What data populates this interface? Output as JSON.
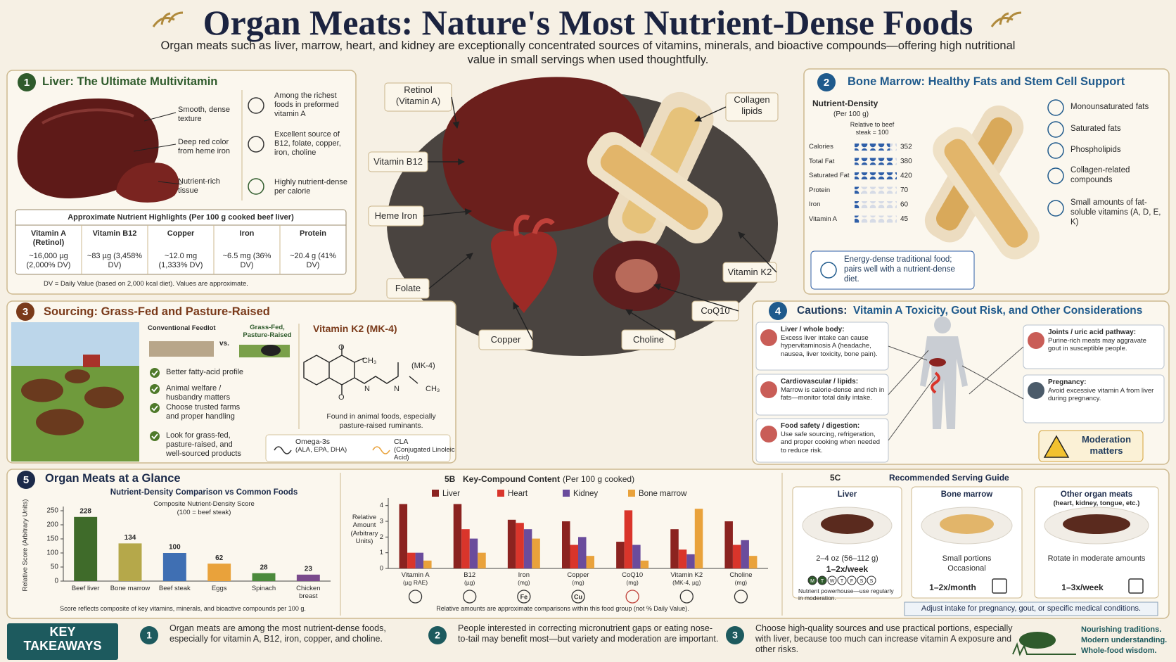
{
  "header": {
    "title": "Organ Meats: Nature's Most Nutrient-Dense Foods",
    "subtitle": "Organ meats such as liver, marrow, heart, and kidney are exceptionally concentrated sources of vitamins, minerals, and bioactive compounds—offering high nutritional value in small servings when used thoughtfully."
  },
  "liver": {
    "number": "1",
    "title": "Liver: The Ultimate Multivitamin",
    "features": [
      "Smooth, dense texture",
      "Deep red color from heme iron",
      "Nutrient-rich tissue"
    ],
    "highlights": [
      "Among the richest foods in preformed vitamin A",
      "Excellent source of B12, folate, copper, iron, choline",
      "Highly nutrient-dense per calorie"
    ],
    "table": {
      "title": "Approximate Nutrient Highlights (Per 100 g cooked beef liver)",
      "columns": [
        "Vitamin A (Retinol)",
        "Vitamin B12",
        "Copper",
        "Iron",
        "Protein"
      ],
      "rows": [
        [
          "~16,000 µg (2,000% DV)",
          "~83 µg (3,458% DV)",
          "~12.0 mg (1,333% DV)",
          "~6.5 mg (36% DV)",
          "~20.4 g (41% DV)"
        ]
      ]
    },
    "note": "DV = Daily Value (based on 2,000 kcal diet). Values are approximate."
  },
  "center_labels": [
    "Retinol (Vitamin A)",
    "Vitamin B12",
    "Heme Iron",
    "Folate",
    "Copper",
    "Choline",
    "CoQ10",
    "Vitamin K2",
    "Collagen lipids"
  ],
  "marrow": {
    "number": "2",
    "title": "Bone Marrow: Healthy Fats and Stem Cell Support",
    "density": {
      "title": "Nutrient-Density",
      "subtitle": "(Per 100 g)",
      "note": "Relative to beef steak = 100",
      "categories": [
        "Calories",
        "Total Fat",
        "Saturated Fat",
        "Protein",
        "Iron",
        "Vitamin A"
      ],
      "values": [
        352,
        380,
        420,
        70,
        60,
        45
      ],
      "color": "#2f5fa8"
    },
    "features": [
      "Monounsaturated fats",
      "Saturated fats",
      "Phospholipids",
      "Collagen-related compounds",
      "Small amounts of fat-soluble vitamins (A, D, E, K)"
    ],
    "note": "Energy-dense traditional food; pairs well with a nutrient-dense diet."
  },
  "sourcing": {
    "number": "3",
    "title": "Sourcing: Grass-Fed and Pasture-Raised",
    "conventional": "Conventional Feedlot",
    "vs": "vs.",
    "grass_fed": "Grass-Fed, Pasture-Raised",
    "benefits": [
      "Better fatty-acid profile",
      "Animal welfare / husbandry matters",
      "Choose trusted farms and proper handling",
      "Look for grass-fed, pasture-raised, and well-sourced products"
    ],
    "k2": {
      "title": "Vitamin K2 (MK-4)",
      "atoms": [
        "O",
        "O",
        "CH₃",
        "(MK-4)",
        "N",
        "N",
        "CH₃"
      ],
      "note": "Found in animal foods, especially pasture-raised ruminants."
    },
    "extras": [
      {
        "name": "Omega-3s",
        "detail": "(ALA, EPA, DHA)"
      },
      {
        "name": "CLA",
        "detail": "(Conjugated Linoleic Acid)"
      }
    ]
  },
  "cautions": {
    "number": "4",
    "title_lead": "Cautions:",
    "title": "Vitamin A Toxicity, Gout Risk, and Other Considerations",
    "items": [
      {
        "title": "Liver / whole body:",
        "text": "Excess liver intake can cause hypervitaminosis A (headache, nausea, liver toxicity, bone pain)."
      },
      {
        "title": "Cardiovascular / lipids:",
        "text": "Marrow is calorie-dense and rich in fats—monitor total daily intake."
      },
      {
        "title": "Food safety / digestion:",
        "text": "Use safe sourcing, refrigeration, and proper cooking when needed to reduce risk."
      },
      {
        "title": "Joints / uric acid pathway:",
        "text": "Purine-rich meats may aggravate gout in susceptible people."
      },
      {
        "title": "Pregnancy:",
        "text": "Avoid excessive vitamin A from liver during pregnancy."
      }
    ],
    "badge": "Moderation matters"
  },
  "glance": {
    "number": "5",
    "title": "Organ Meats at a Glance"
  },
  "chart_data": [
    {
      "type": "bar",
      "title": "Nutrient-Density Comparison vs Common Foods",
      "subtitle": "Composite Nutrient-Density Score",
      "scale_note": "(100 = beef steak)",
      "y_label": "Relative Score (Arbitrary Units)",
      "categories": [
        "Beef liver",
        "Bone marrow",
        "Beef steak",
        "Eggs",
        "Spinach",
        "Chicken breast"
      ],
      "values": [
        228,
        134,
        100,
        62,
        28,
        23
      ],
      "colors": [
        "#3f6b2a",
        "#b5a84a",
        "#3f6fb3",
        "#e9a23b",
        "#4b8a3c",
        "#7a4a8c"
      ],
      "ylim": [
        0,
        255
      ],
      "yticks": [
        0,
        50,
        100,
        150,
        200,
        250
      ],
      "note": "Score reflects composite of key vitamins, minerals, and bioactive compounds per 100 g."
    },
    {
      "type": "bar",
      "title_code": "5B",
      "title": "Key-Compound Content",
      "title_note": "(Per 100 g cooked)",
      "y_label": "Relative Amount (Arbitrary Units)",
      "categories": [
        "Vitamin A",
        "B12",
        "Iron",
        "Copper",
        "CoQ10",
        "Vitamin K2",
        "Choline"
      ],
      "units": [
        "(µg RAE)",
        "(µg)",
        "(mg)",
        "(mg)",
        "(mg)",
        "(MK-4, µg)",
        "(mg)"
      ],
      "icon_labels": [
        null,
        null,
        "Fe",
        "Cu",
        null,
        null,
        null
      ],
      "series": [
        {
          "name": "Liver",
          "color": "#8b2320",
          "values": [
            4.1,
            4.1,
            3.1,
            3.0,
            1.7,
            2.5,
            3.0
          ]
        },
        {
          "name": "Heart",
          "color": "#d9352b",
          "values": [
            1.0,
            2.5,
            2.9,
            1.5,
            3.7,
            1.2,
            1.5
          ]
        },
        {
          "name": "Kidney",
          "color": "#6a4c9c",
          "values": [
            1.0,
            1.9,
            2.5,
            2.0,
            1.5,
            0.9,
            1.8
          ]
        },
        {
          "name": "Bone marrow",
          "color": "#e9a23b",
          "values": [
            0.5,
            1.0,
            1.9,
            0.8,
            0.5,
            3.8,
            0.8
          ]
        }
      ],
      "ylim": [
        0,
        4.3
      ],
      "yticks": [
        0,
        1,
        2,
        3,
        4
      ],
      "note": "Relative amounts are approximate comparisons within this food group (not % Daily Value)."
    }
  ],
  "serving": {
    "code": "5C",
    "title": "Recommended Serving Guide",
    "cards": [
      {
        "name": "Liver",
        "portion": "2–4 oz (56–112 g)",
        "frequency": "1–2x/week",
        "days": [
          "M",
          "T",
          "W",
          "T",
          "F",
          "S",
          "S"
        ],
        "note": "Nutrient powerhouse—use regularly in moderation."
      },
      {
        "name": "Bone marrow",
        "portion": "Small portions",
        "detail": "Occasional",
        "frequency": "1–2x/month"
      },
      {
        "name": "Other organ meats",
        "qualifier": "(heart, kidney, tongue, etc.)",
        "portion": "Rotate in moderate amounts",
        "frequency": "1–3x/week"
      }
    ],
    "footer": "Adjust intake for pregnancy, gout, or specific medical conditions."
  },
  "takeaways": {
    "label": "KEY TAKEAWAYS",
    "items": [
      {
        "number": "1",
        "text": "Organ meats are among the most nutrient-dense foods, especially for vitamin A, B12, iron, copper, and choline."
      },
      {
        "number": "2",
        "text": "People interested in correcting micronutrient gaps or eating nose-to-tail may benefit most—but variety and moderation are important."
      },
      {
        "number": "3",
        "text": "Choose high-quality sources and use practical portions, especially with liver, because too much can increase vitamin A exposure and other risks."
      }
    ],
    "tagline": [
      "Nourishing traditions.",
      "Modern understanding.",
      "Whole-food wisdom."
    ]
  }
}
